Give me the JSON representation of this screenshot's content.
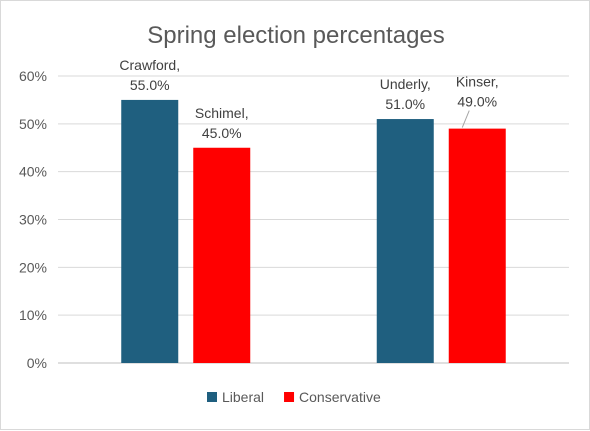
{
  "chart_data": {
    "type": "bar",
    "title": "Spring election percentages",
    "categories": [
      "",
      ""
    ],
    "series": [
      {
        "name": "Liberal",
        "color": "#1f5f7f",
        "values": [
          0.55,
          0.51
        ],
        "labels": [
          [
            "Crawford,",
            "55.0%"
          ],
          [
            "Underly,",
            "51.0%"
          ]
        ]
      },
      {
        "name": "Conservative",
        "color": "#ff0000",
        "values": [
          0.45,
          0.49
        ],
        "labels": [
          [
            "Schimel,",
            "45.0%"
          ],
          [
            "Kinser,",
            "49.0%"
          ]
        ]
      }
    ],
    "yticks": [
      "0%",
      "10%",
      "20%",
      "30%",
      "40%",
      "50%",
      "60%"
    ],
    "ylim": [
      0,
      0.6
    ],
    "grid": true,
    "legend_position": "bottom"
  }
}
